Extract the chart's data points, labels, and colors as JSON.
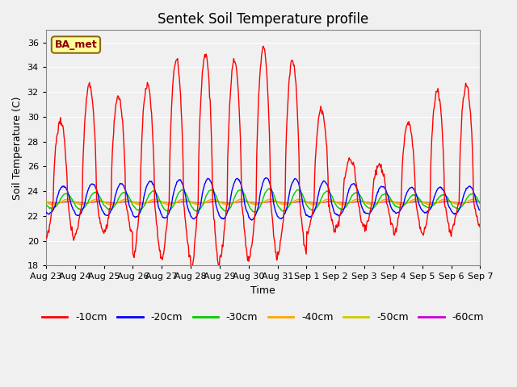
{
  "title": "Sentek Soil Temperature profile",
  "xlabel": "Time",
  "ylabel": "Soil Temperature (C)",
  "ylim": [
    18,
    37
  ],
  "yticks": [
    18,
    20,
    22,
    24,
    26,
    28,
    30,
    32,
    34,
    36
  ],
  "background_color": "#f0f0f0",
  "plot_bg_color": "#f0f0f0",
  "grid_color": "#ffffff",
  "annotation_text": "BA_met",
  "annotation_box_color": "#ffff99",
  "annotation_border_color": "#8B6914",
  "colors": {
    "-10cm": "#ff0000",
    "-20cm": "#0000ff",
    "-30cm": "#00cc00",
    "-40cm": "#ffa500",
    "-50cm": "#cccc00",
    "-60cm": "#cc00cc"
  },
  "x_labels": [
    "Aug 23",
    "Aug 24",
    "Aug 25",
    "Aug 26",
    "Aug 27",
    "Aug 28",
    "Aug 29",
    "Aug 30",
    "Aug 31",
    "Sep 1",
    "Sep 2",
    "Sep 3",
    "Sep 4",
    "Sep 5",
    "Sep 6",
    "Sep 7"
  ],
  "base_temp": 23.1,
  "figsize": [
    6.4,
    4.8
  ],
  "dpi": 100
}
